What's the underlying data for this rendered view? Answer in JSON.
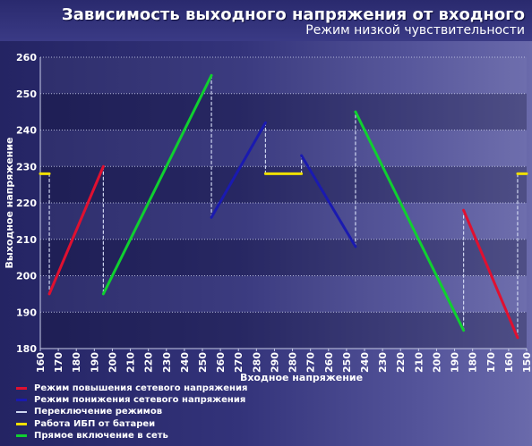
{
  "header": {
    "title": "Зависимость выходного напряжения от входного",
    "subtitle": "Режим низкой чувствительности"
  },
  "chart_data": {
    "type": "line",
    "title": "Зависимость выходного напряжения от входного",
    "subtitle": "Режим низкой чувствительности",
    "xlabel": "Входное напряжение",
    "ylabel": "Выходное напряжение",
    "x_tick_labels": [
      "160",
      "170",
      "180",
      "190",
      "200",
      "210",
      "220",
      "230",
      "240",
      "250",
      "260",
      "270",
      "280",
      "290",
      "280",
      "270",
      "260",
      "250",
      "240",
      "230",
      "220",
      "210",
      "200",
      "190",
      "180",
      "170",
      "160",
      "150"
    ],
    "y_ticks": [
      180,
      190,
      200,
      210,
      220,
      230,
      240,
      250,
      260
    ],
    "ylim": [
      180,
      260
    ],
    "grid": true,
    "legend_position": "bottom-left",
    "series": [
      {
        "name": "Режим повышения сетевого напряжения",
        "color": "#e01030",
        "style": "solid",
        "segments": [
          {
            "x_index": [
              0.5,
              3.5
            ],
            "y": [
              195,
              230
            ]
          },
          {
            "x_index": [
              23.5,
              26.5
            ],
            "y": [
              218,
              183
            ]
          }
        ]
      },
      {
        "name": "Режим понижения сетевого напряжения",
        "color": "#1a1ab0",
        "style": "solid",
        "segments": [
          {
            "x_index": [
              9.5,
              12.5
            ],
            "y": [
              216,
              242
            ]
          },
          {
            "x_index": [
              14.5,
              17.5
            ],
            "y": [
              233,
              208
            ]
          }
        ]
      },
      {
        "name": "Переключение режимов",
        "color": "#cfd6f0",
        "style": "dashed",
        "segments": [
          {
            "x_index": [
              0.5,
              0.5
            ],
            "y": [
              228,
              195
            ]
          },
          {
            "x_index": [
              3.5,
              3.5
            ],
            "y": [
              230,
              195
            ]
          },
          {
            "x_index": [
              9.5,
              9.5
            ],
            "y": [
              255,
              216
            ]
          },
          {
            "x_index": [
              12.5,
              12.5
            ],
            "y": [
              242,
              228
            ]
          },
          {
            "x_index": [
              14.5,
              14.5
            ],
            "y": [
              228,
              233
            ]
          },
          {
            "x_index": [
              17.5,
              17.5
            ],
            "y": [
              208,
              245
            ]
          },
          {
            "x_index": [
              23.5,
              23.5
            ],
            "y": [
              218,
              185
            ]
          },
          {
            "x_index": [
              26.5,
              26.5
            ],
            "y": [
              183,
              228
            ]
          }
        ]
      },
      {
        "name": "Работа ИБП от батареи",
        "color": "#f0e000",
        "style": "solid",
        "segments": [
          {
            "x_index": [
              0.0,
              0.5
            ],
            "y": [
              228,
              228
            ]
          },
          {
            "x_index": [
              12.5,
              14.5
            ],
            "y": [
              228,
              228
            ]
          },
          {
            "x_index": [
              26.5,
              27.0
            ],
            "y": [
              228,
              228
            ]
          }
        ]
      },
      {
        "name": "Прямое включение в сеть",
        "color": "#10d030",
        "style": "solid",
        "segments": [
          {
            "x_index": [
              3.5,
              9.5
            ],
            "y": [
              195,
              255
            ]
          },
          {
            "x_index": [
              17.5,
              23.5
            ],
            "y": [
              245,
              185
            ]
          }
        ]
      }
    ]
  },
  "legend": {
    "items": [
      {
        "label": "Режим повышения сетевого напряжения",
        "color": "#e01030",
        "style": "solid"
      },
      {
        "label": "Режим понижения сетевого напряжения",
        "color": "#1a1ab0",
        "style": "solid"
      },
      {
        "label": "Переключение режимов",
        "color": "#cfd6f0",
        "style": "dashed"
      },
      {
        "label": "Работа ИБП от батареи",
        "color": "#f0e000",
        "style": "solid"
      },
      {
        "label": "Прямое включение в сеть",
        "color": "#10d030",
        "style": "solid"
      }
    ]
  }
}
